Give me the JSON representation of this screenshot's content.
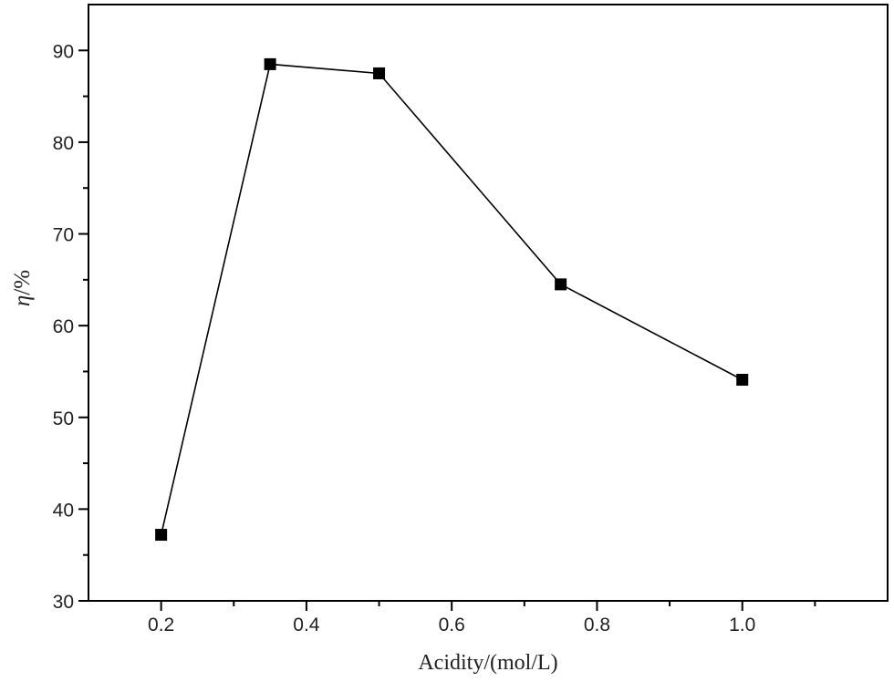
{
  "chart_data": {
    "type": "line",
    "title": "",
    "xlabel": "Acidity/(mol/L)",
    "ylabel_symbol": "η",
    "ylabel_unit": "/%",
    "xlim": [
      0.1,
      1.2
    ],
    "ylim": [
      30,
      95
    ],
    "x_ticks": [
      0.2,
      0.4,
      0.6,
      0.8,
      1.0
    ],
    "x_tick_labels": [
      "0.2",
      "0.4",
      "0.6",
      "0.8",
      "1.0"
    ],
    "y_ticks": [
      30,
      40,
      50,
      60,
      70,
      80,
      90
    ],
    "y_tick_labels": [
      "30",
      "40",
      "50",
      "60",
      "70",
      "80",
      "90"
    ],
    "grid": false,
    "marker": "square",
    "series": [
      {
        "name": "",
        "x": [
          0.2,
          0.35,
          0.5,
          0.75,
          1.0
        ],
        "y": [
          37.2,
          88.5,
          87.5,
          64.5,
          54.1
        ],
        "color": "#000000"
      }
    ]
  }
}
